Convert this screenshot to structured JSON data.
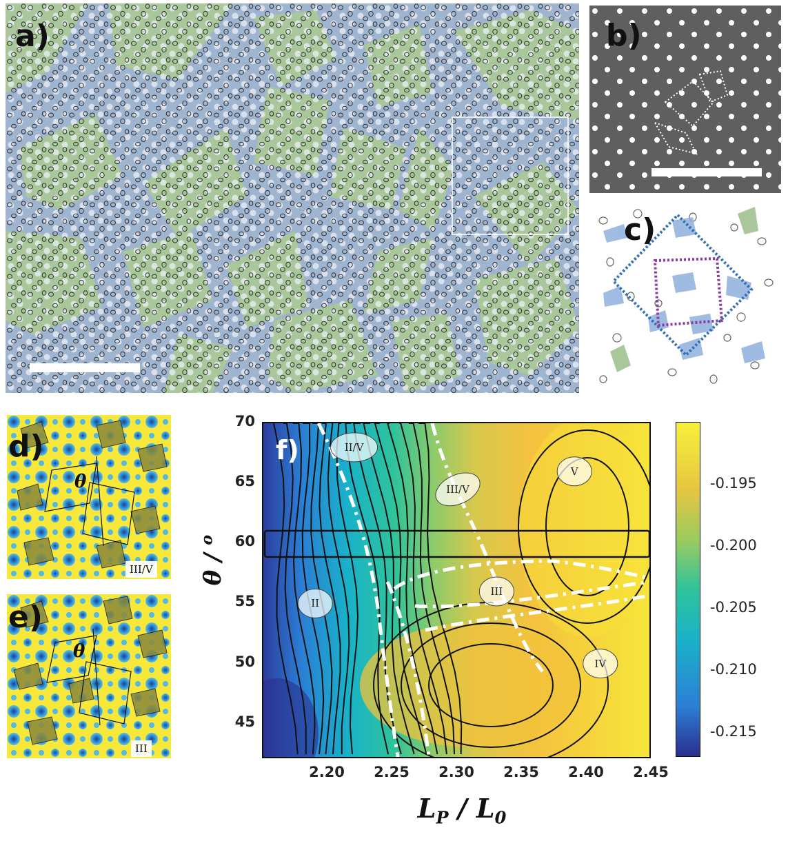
{
  "panels": {
    "a": {
      "label": "a)"
    },
    "b": {
      "label": "b)"
    },
    "c": {
      "label": "c)"
    },
    "d": {
      "label": "d)",
      "theta": "θ",
      "tag": "III/V"
    },
    "e": {
      "label": "e)",
      "theta": "θ",
      "tag": "III"
    },
    "f": {
      "label": "f)"
    }
  },
  "colors": {
    "blue_domain": "#9fb4cf",
    "green_domain": "#a9c79a",
    "sem_gray": "#5f5f5f",
    "pattern_yellow": "#f7e83a",
    "pattern_blue": "#2c86c8",
    "contour_low": "#2b2f8f",
    "contour_high": "#f7f03a"
  },
  "chart_data": {
    "type": "heatmap",
    "title": "",
    "xlabel": "L_P / L_0",
    "ylabel": "θ / o",
    "xlim": [
      2.15,
      2.45
    ],
    "ylim": [
      42,
      70
    ],
    "x_ticks": [
      "2.20",
      "2.25",
      "2.30",
      "2.35",
      "2.40",
      "2.45"
    ],
    "y_ticks": [
      "45",
      "50",
      "55",
      "60",
      "65",
      "70"
    ],
    "colorbar": {
      "range": [
        -0.217,
        -0.19
      ],
      "ticks": [
        "-0.195",
        "-0.200",
        "-0.205",
        "-0.210",
        "-0.215"
      ]
    },
    "regions": [
      {
        "label": "II/V",
        "x": 2.22,
        "y": 68.0
      },
      {
        "label": "V",
        "x": 2.39,
        "y": 66.0
      },
      {
        "label": "III/V",
        "x": 2.3,
        "y": 64.5
      },
      {
        "label": "III",
        "x": 2.33,
        "y": 56.0
      },
      {
        "label": "II",
        "x": 2.19,
        "y": 55.0
      },
      {
        "label": "IV",
        "x": 2.41,
        "y": 50.0
      }
    ],
    "highlight_band": [
      58.5,
      61.5
    ]
  }
}
